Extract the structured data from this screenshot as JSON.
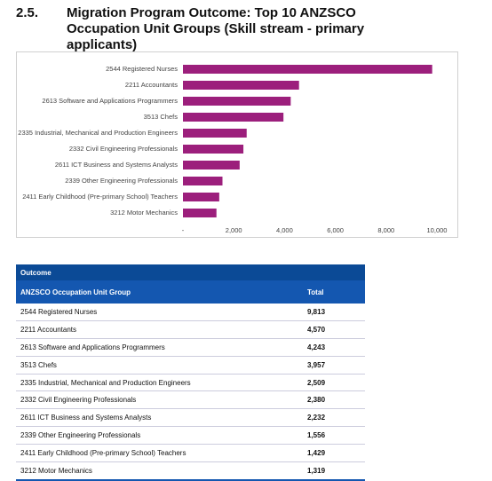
{
  "heading": {
    "number": "2.5.",
    "title": "Migration Program Outcome: Top 10 ANZSCO Occupation Unit Groups (Skill stream - primary applicants)"
  },
  "chart_data": {
    "type": "bar",
    "orientation": "horizontal",
    "color": "#9c1f7c",
    "categories": [
      "2544 Registered Nurses",
      "2211 Accountants",
      "2613 Software and Applications Programmers",
      "3513 Chefs",
      "2335 Industrial, Mechanical and Production Engineers",
      "2332 Civil Engineering Professionals",
      "2611 ICT Business and Systems Analysts",
      "2339 Other Engineering Professionals",
      "2411 Early Childhood (Pre-primary School) Teachers",
      "3212 Motor Mechanics"
    ],
    "values": [
      9813,
      4570,
      4243,
      3957,
      2509,
      2380,
      2232,
      1556,
      1429,
      1319
    ],
    "xlim": [
      0,
      10000
    ],
    "xticks": [
      {
        "value": 0,
        "label": "-"
      },
      {
        "value": 2000,
        "label": "2,000"
      },
      {
        "value": 4000,
        "label": "4,000"
      },
      {
        "value": 6000,
        "label": "6,000"
      },
      {
        "value": 8000,
        "label": "8,000"
      },
      {
        "value": 10000,
        "label": "10,000"
      }
    ]
  },
  "table": {
    "caption": "Outcome",
    "columns": [
      "ANZSCO Occupation Unit Group",
      "Total"
    ],
    "rows": [
      [
        "2544 Registered Nurses",
        "9,813"
      ],
      [
        "2211 Accountants",
        "4,570"
      ],
      [
        "2613 Software and Applications Programmers",
        "4,243"
      ],
      [
        "3513 Chefs",
        "3,957"
      ],
      [
        "2335 Industrial, Mechanical and Production Engineers",
        "2,509"
      ],
      [
        "2332 Civil Engineering Professionals",
        "2,380"
      ],
      [
        "2611 ICT Business and Systems Analysts",
        "2,232"
      ],
      [
        "2339 Other Engineering Professionals",
        "1,556"
      ],
      [
        "2411 Early Childhood (Pre-primary School) Teachers",
        "1,429"
      ],
      [
        "3212 Motor Mechanics",
        "1,319"
      ]
    ]
  }
}
